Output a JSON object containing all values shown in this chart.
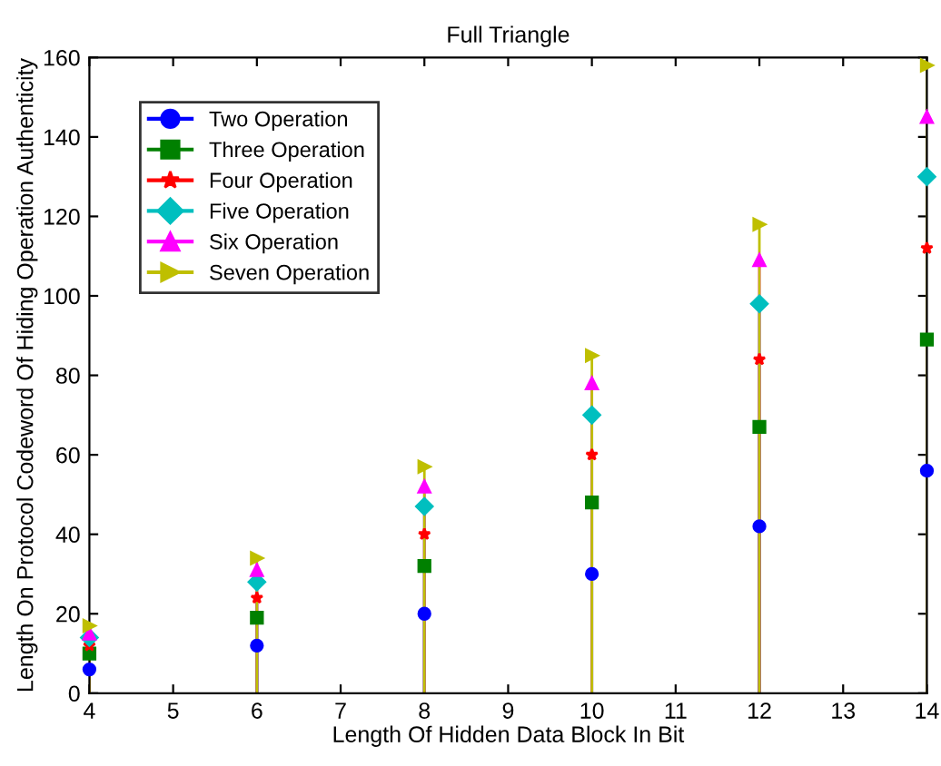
{
  "chart_data": {
    "type": "lollipop",
    "title": "Full Triangle",
    "xlabel": "Length Of Hidden Data Block In Bit",
    "ylabel": "Length On Protocol Codeword Of Hiding Operation Authenticity",
    "x": [
      4,
      6,
      8,
      10,
      12,
      14
    ],
    "series": [
      {
        "name": "Two Operation",
        "color": "#0000ff",
        "marker": "circle",
        "values": [
          6,
          12,
          20,
          30,
          42,
          56
        ]
      },
      {
        "name": "Three Operation",
        "color": "#008000",
        "marker": "square",
        "values": [
          10,
          19,
          32,
          48,
          67,
          89
        ]
      },
      {
        "name": "Four Operation",
        "color": "#ff0000",
        "marker": "star",
        "values": [
          12,
          24,
          40,
          60,
          84,
          112
        ]
      },
      {
        "name": "Five Operation",
        "color": "#00bfbf",
        "marker": "diamond",
        "values": [
          14,
          28,
          47,
          70,
          98,
          130
        ]
      },
      {
        "name": "Six Operation",
        "color": "#ff00ff",
        "marker": "triangle",
        "values": [
          15,
          31,
          52,
          78,
          109,
          145
        ]
      },
      {
        "name": "Seven Operation",
        "color": "#bfbf00",
        "marker": "triangle_right",
        "values": [
          17,
          34,
          57,
          85,
          118,
          158
        ]
      }
    ],
    "xlim": [
      4,
      14
    ],
    "xticks": [
      4,
      5,
      6,
      7,
      8,
      9,
      10,
      11,
      12,
      13,
      14
    ],
    "ylim": [
      0,
      160
    ],
    "yticks": [
      0,
      20,
      40,
      60,
      80,
      100,
      120,
      140,
      160
    ],
    "legend": "top left"
  }
}
